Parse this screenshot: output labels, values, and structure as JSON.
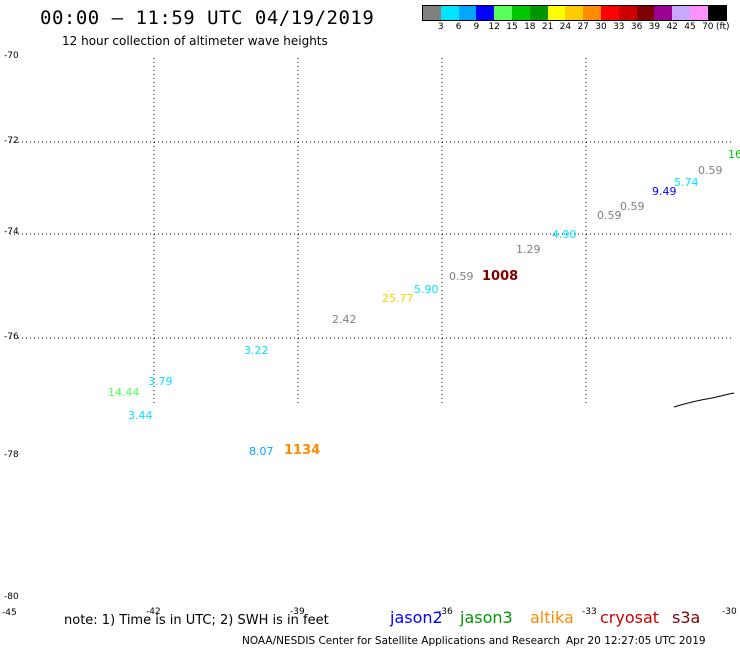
{
  "header": {
    "title": "00:00 – 11:59 UTC 04/19/2019",
    "subtitle": "12 hour collection of altimeter wave heights"
  },
  "colorbar": {
    "colors": [
      "#808080",
      "#00e5ff",
      "#00a6ff",
      "#0000ff",
      "#5aff5a",
      "#00c800",
      "#009600",
      "#ffff00",
      "#ffcc00",
      "#ff8c00",
      "#ff0000",
      "#cc0000",
      "#800000",
      "#9b0090",
      "#c8a8ff",
      "#ff90ff",
      "#000000"
    ],
    "labels": [
      "3",
      "6",
      "9",
      "12",
      "15",
      "18",
      "21",
      "24",
      "27",
      "30",
      "33",
      "36",
      "39",
      "42",
      "45",
      "70"
    ],
    "unit": "(ft)"
  },
  "map": {
    "lat_labels": [
      "-70",
      "-72",
      "-74",
      "-76",
      "-78",
      "-80"
    ],
    "lon_labels": [
      "-45",
      "-42",
      "-39",
      "-36",
      "-33",
      "-30"
    ],
    "observations": [
      {
        "value": "16",
        "color": "#00c800",
        "big": false
      },
      {
        "value": "0.59",
        "color": "#808080",
        "big": false
      },
      {
        "value": "5.74",
        "color": "#00e5ff",
        "big": false
      },
      {
        "value": "9.49",
        "color": "#0000ff",
        "big": false
      },
      {
        "value": "0.59",
        "color": "#808080",
        "big": false
      },
      {
        "value": "0.59",
        "color": "#808080",
        "big": false
      },
      {
        "value": "4.90",
        "color": "#00e5ff",
        "big": false
      },
      {
        "value": "1.29",
        "color": "#808080",
        "big": false
      },
      {
        "value": "0.59",
        "color": "#808080",
        "big": false
      },
      {
        "value": "1008",
        "color": "#800000",
        "big": true
      },
      {
        "value": "5.90",
        "color": "#00e5ff",
        "big": false
      },
      {
        "value": "25.77",
        "color": "#ffcc00",
        "big": false
      },
      {
        "value": "2.42",
        "color": "#808080",
        "big": false
      },
      {
        "value": "3.22",
        "color": "#00e5ff",
        "big": false
      },
      {
        "value": "3.79",
        "color": "#00e5ff",
        "big": false
      },
      {
        "value": "14.44",
        "color": "#5aff5a",
        "big": false
      },
      {
        "value": "3.44",
        "color": "#00e5ff",
        "big": false
      },
      {
        "value": "8.07",
        "color": "#00a6ff",
        "big": false
      },
      {
        "value": "1134",
        "color": "#ff8c00",
        "big": true
      }
    ]
  },
  "footer": {
    "note": "note: 1) Time is in UTC; 2) SWH is in feet",
    "satellites": [
      {
        "name": "jason2",
        "color": "#0000ff"
      },
      {
        "name": "jason3",
        "color": "#009600"
      },
      {
        "name": "altika",
        "color": "#ff8c00"
      },
      {
        "name": "cryosat",
        "color": "#cc0000"
      },
      {
        "name": "s3a",
        "color": "#800000"
      }
    ],
    "credit": "NOAA/NESDIS Center for Satellite Applications and Research",
    "timestamp": "Apr 20 12:27:05 UTC 2019"
  }
}
